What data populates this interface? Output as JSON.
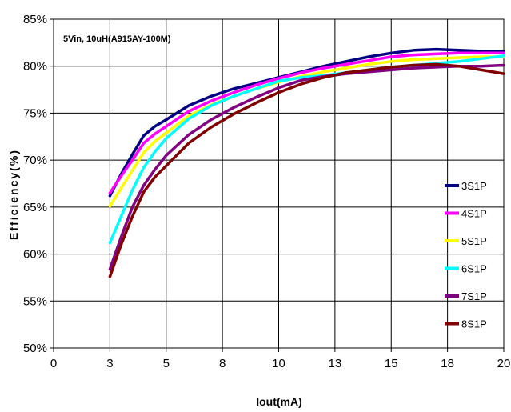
{
  "chart_data": {
    "type": "line",
    "annotation": "5Vin, 10uH(A915AY-100M)",
    "xlabel": "Iout(mA)",
    "ylabel": "Efficiency(%)",
    "xlim": [
      0,
      20
    ],
    "ylim": [
      50,
      85
    ],
    "x_tick_values": [
      0,
      2.5,
      5,
      7.5,
      10,
      12.5,
      15,
      17.5,
      20
    ],
    "x_tick_labels": [
      "0",
      "3",
      "5",
      "8",
      "10",
      "13",
      "15",
      "18",
      "20"
    ],
    "y_tick_values": [
      50,
      55,
      60,
      65,
      70,
      75,
      80,
      85
    ],
    "y_tick_labels": [
      "50%",
      "55%",
      "60%",
      "65%",
      "70%",
      "75%",
      "80%",
      "85%"
    ],
    "grid": true,
    "legend_position": "right",
    "series": [
      {
        "name": "3S1P",
        "color": "#000080",
        "x": [
          2.5,
          3,
          3.5,
          4,
          4.5,
          5,
          6,
          7,
          8,
          9,
          10,
          11,
          12,
          13,
          14,
          15,
          16,
          17,
          18,
          19,
          20
        ],
        "y": [
          66.2,
          68.5,
          70.6,
          72.6,
          73.6,
          74.3,
          75.8,
          76.8,
          77.6,
          78.2,
          78.8,
          79.4,
          80.0,
          80.5,
          81.0,
          81.4,
          81.7,
          81.8,
          81.7,
          81.6,
          81.6
        ]
      },
      {
        "name": "4S1P",
        "color": "#ff00ff",
        "x": [
          2.5,
          3,
          3.5,
          4,
          4.5,
          5,
          6,
          7,
          8,
          9,
          10,
          11,
          12,
          13,
          14,
          15,
          16,
          17,
          18,
          19,
          20
        ],
        "y": [
          66.5,
          68.3,
          70.0,
          71.8,
          72.8,
          73.6,
          75.2,
          76.3,
          77.2,
          78.0,
          78.7,
          79.3,
          79.8,
          80.2,
          80.6,
          81.0,
          81.2,
          81.3,
          81.4,
          81.4,
          81.4
        ]
      },
      {
        "name": "5S1P",
        "color": "#ffff00",
        "x": [
          2.5,
          3,
          3.5,
          4,
          4.5,
          5,
          6,
          7,
          8,
          9,
          10,
          11,
          12,
          13,
          14,
          15,
          16,
          17,
          18,
          19,
          20
        ],
        "y": [
          65.1,
          67.0,
          68.9,
          70.8,
          72.0,
          72.9,
          74.7,
          75.9,
          76.8,
          77.6,
          78.3,
          78.9,
          79.4,
          79.8,
          80.2,
          80.5,
          80.7,
          80.8,
          80.9,
          81.0,
          81.0
        ]
      },
      {
        "name": "6S1P",
        "color": "#00ffff",
        "x": [
          2.5,
          3,
          3.5,
          4,
          4.5,
          5,
          6,
          7,
          8,
          9,
          10,
          11,
          12,
          13,
          14,
          15,
          16,
          17,
          18,
          19,
          20
        ],
        "y": [
          61.2,
          64.0,
          66.8,
          69.2,
          70.9,
          72.3,
          74.4,
          75.8,
          76.8,
          77.6,
          78.4,
          78.8,
          79.0,
          79.3,
          79.6,
          79.9,
          80.1,
          80.3,
          80.5,
          80.8,
          81.1
        ]
      },
      {
        "name": "7S1P",
        "color": "#800080",
        "x": [
          2.5,
          3,
          3.5,
          4,
          4.5,
          5,
          6,
          7,
          8,
          9,
          10,
          11,
          12,
          13,
          14,
          15,
          16,
          17,
          18,
          19,
          20
        ],
        "y": [
          58.4,
          61.8,
          65.0,
          67.3,
          69.0,
          70.5,
          72.7,
          74.3,
          75.6,
          76.7,
          77.7,
          78.5,
          78.9,
          79.2,
          79.4,
          79.6,
          79.8,
          79.9,
          80.0,
          80.0,
          80.1
        ]
      },
      {
        "name": "8S1P",
        "color": "#800000",
        "x": [
          2.5,
          3,
          3.5,
          4,
          4.5,
          5,
          6,
          7,
          8,
          9,
          10,
          11,
          12,
          13,
          14,
          15,
          16,
          17,
          18,
          19,
          20
        ],
        "y": [
          57.6,
          61.0,
          64.0,
          66.6,
          68.2,
          69.4,
          71.8,
          73.5,
          74.9,
          76.1,
          77.2,
          78.1,
          78.8,
          79.3,
          79.6,
          79.9,
          80.1,
          80.2,
          80.0,
          79.6,
          79.2
        ]
      }
    ]
  }
}
